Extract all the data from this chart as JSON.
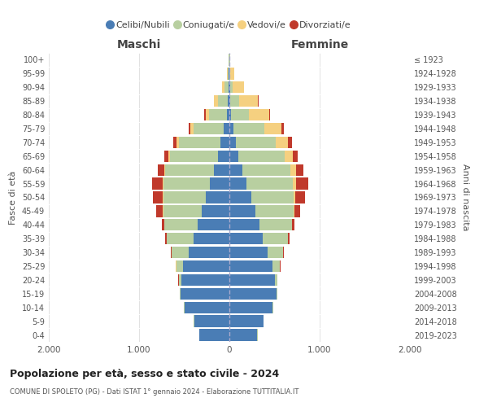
{
  "age_groups": [
    "0-4",
    "5-9",
    "10-14",
    "15-19",
    "20-24",
    "25-29",
    "30-34",
    "35-39",
    "40-44",
    "45-49",
    "50-54",
    "55-59",
    "60-64",
    "65-69",
    "70-74",
    "75-79",
    "80-84",
    "85-89",
    "90-94",
    "95-99",
    "100+"
  ],
  "birth_years": [
    "2019-2023",
    "2014-2018",
    "2009-2013",
    "2004-2008",
    "1999-2003",
    "1994-1998",
    "1989-1993",
    "1984-1988",
    "1979-1983",
    "1974-1978",
    "1969-1973",
    "1964-1968",
    "1959-1963",
    "1954-1958",
    "1949-1953",
    "1944-1948",
    "1939-1943",
    "1934-1938",
    "1929-1933",
    "1924-1928",
    "≤ 1923"
  ],
  "maschi": {
    "celibi": [
      330,
      390,
      500,
      540,
      530,
      510,
      450,
      400,
      350,
      310,
      260,
      220,
      170,
      130,
      100,
      60,
      25,
      15,
      8,
      5,
      3
    ],
    "coniugati": [
      5,
      5,
      5,
      10,
      30,
      80,
      190,
      290,
      370,
      420,
      470,
      510,
      540,
      530,
      460,
      340,
      200,
      110,
      45,
      15,
      5
    ],
    "vedovi": [
      0,
      0,
      0,
      0,
      2,
      2,
      3,
      5,
      5,
      5,
      8,
      10,
      12,
      18,
      25,
      30,
      40,
      45,
      25,
      10,
      3
    ],
    "divorziati": [
      0,
      0,
      0,
      2,
      3,
      5,
      10,
      15,
      25,
      75,
      110,
      115,
      75,
      45,
      35,
      20,
      10,
      5,
      2,
      0,
      0
    ]
  },
  "femmine": {
    "nubili": [
      310,
      375,
      480,
      520,
      500,
      480,
      420,
      370,
      330,
      290,
      240,
      190,
      140,
      100,
      70,
      45,
      20,
      10,
      5,
      3,
      2
    ],
    "coniugate": [
      5,
      5,
      5,
      10,
      30,
      80,
      175,
      275,
      360,
      420,
      470,
      510,
      540,
      510,
      440,
      340,
      200,
      95,
      35,
      10,
      3
    ],
    "vedove": [
      0,
      0,
      0,
      0,
      2,
      2,
      3,
      5,
      8,
      12,
      20,
      35,
      60,
      90,
      140,
      190,
      220,
      210,
      120,
      45,
      8
    ],
    "divorziate": [
      0,
      0,
      0,
      2,
      3,
      5,
      10,
      15,
      20,
      65,
      110,
      135,
      80,
      55,
      45,
      25,
      10,
      5,
      2,
      0,
      0
    ]
  },
  "colors": {
    "celibi_nubili": "#4a7db5",
    "coniugati_e": "#b8cfa0",
    "vedovi_e": "#f5d080",
    "divorziati_e": "#c0392b"
  },
  "xlim": 2000,
  "title": "Popolazione per età, sesso e stato civile - 2024",
  "subtitle": "COMUNE DI SPOLETO (PG) - Dati ISTAT 1° gennaio 2024 - Elaborazione TUTTITALIA.IT",
  "ylabel_left": "Fasce di età",
  "ylabel_right": "Anni di nascita",
  "xlabel_left": "Maschi",
  "xlabel_right": "Femmine",
  "background_color": "#ffffff",
  "grid_color": "#cccccc"
}
